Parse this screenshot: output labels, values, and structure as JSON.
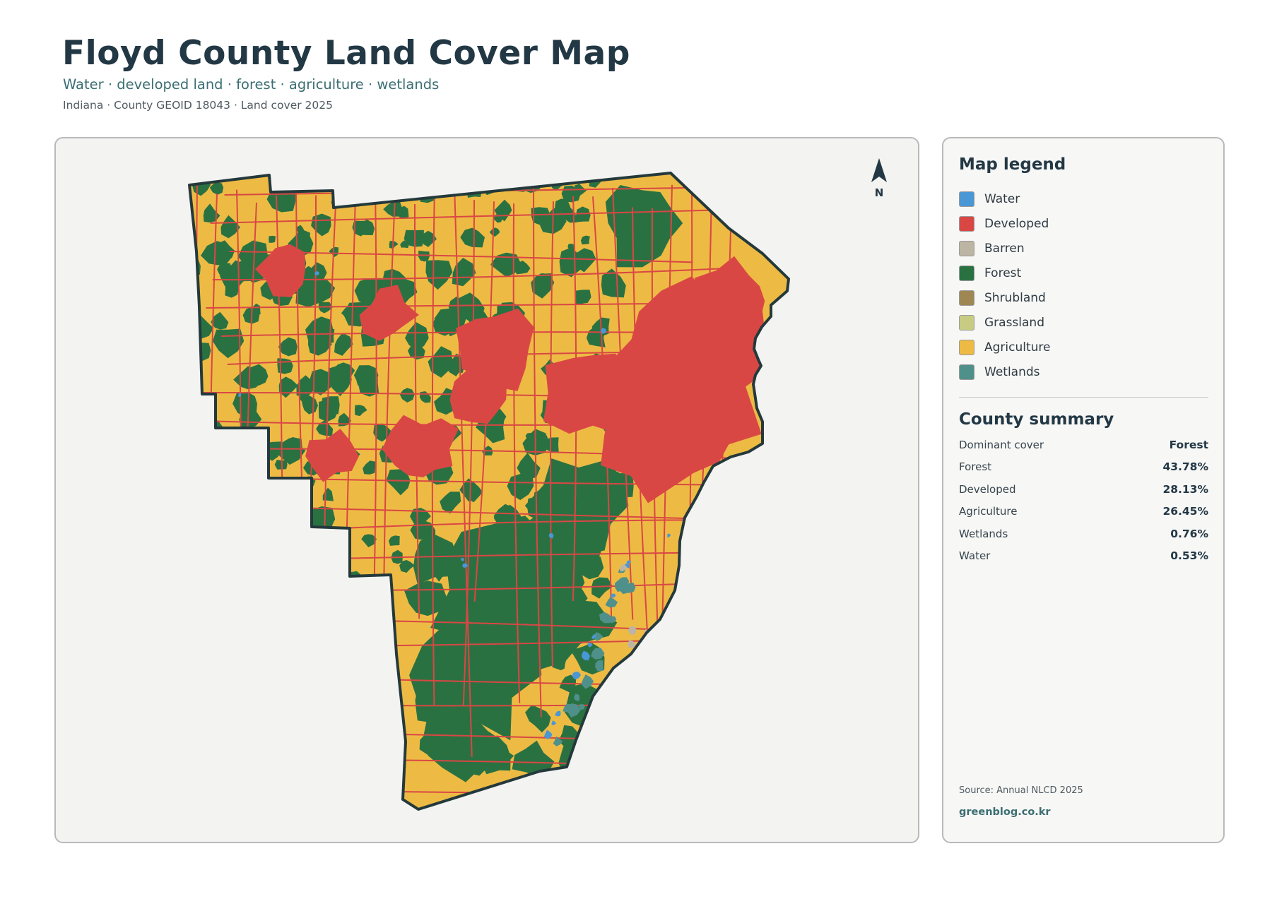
{
  "header": {
    "title": "Floyd County Land Cover Map",
    "subtitle": "Water · developed land · forest · agriculture · wetlands",
    "meta": "Indiana · County GEOID 18043 · Land cover 2025"
  },
  "map": {
    "north_label": "N",
    "north_icon": "north-arrow-icon",
    "colors": {
      "water": "#4a97d6",
      "developed": "#d94744",
      "barren": "#bdb5a3",
      "forest": "#2a7142",
      "shrubland": "#9e8752",
      "grassland": "#c8cc82",
      "agriculture": "#edbb44",
      "wetlands": "#4f908a",
      "outline": "#24393b",
      "panel_bg": "#f3f3f2"
    }
  },
  "legend": {
    "title": "Map legend",
    "items": [
      {
        "label": "Water",
        "color": "#4a97d6"
      },
      {
        "label": "Developed",
        "color": "#d94744"
      },
      {
        "label": "Barren",
        "color": "#bdb5a3"
      },
      {
        "label": "Forest",
        "color": "#2a7142"
      },
      {
        "label": "Shrubland",
        "color": "#9e8752"
      },
      {
        "label": "Grassland",
        "color": "#c8cc82"
      },
      {
        "label": "Agriculture",
        "color": "#edbb44"
      },
      {
        "label": "Wetlands",
        "color": "#4f908a"
      }
    ]
  },
  "summary": {
    "title": "County summary",
    "rows": [
      {
        "label": "Dominant cover",
        "value": "Forest"
      },
      {
        "label": "Forest",
        "value": "43.78%"
      },
      {
        "label": "Developed",
        "value": "28.13%"
      },
      {
        "label": "Agriculture",
        "value": "26.45%"
      },
      {
        "label": "Wetlands",
        "value": "0.76%"
      },
      {
        "label": "Water",
        "value": "0.53%"
      }
    ]
  },
  "footer": {
    "source": "Source: Annual NLCD 2025",
    "site": "greenblog.co.kr"
  }
}
